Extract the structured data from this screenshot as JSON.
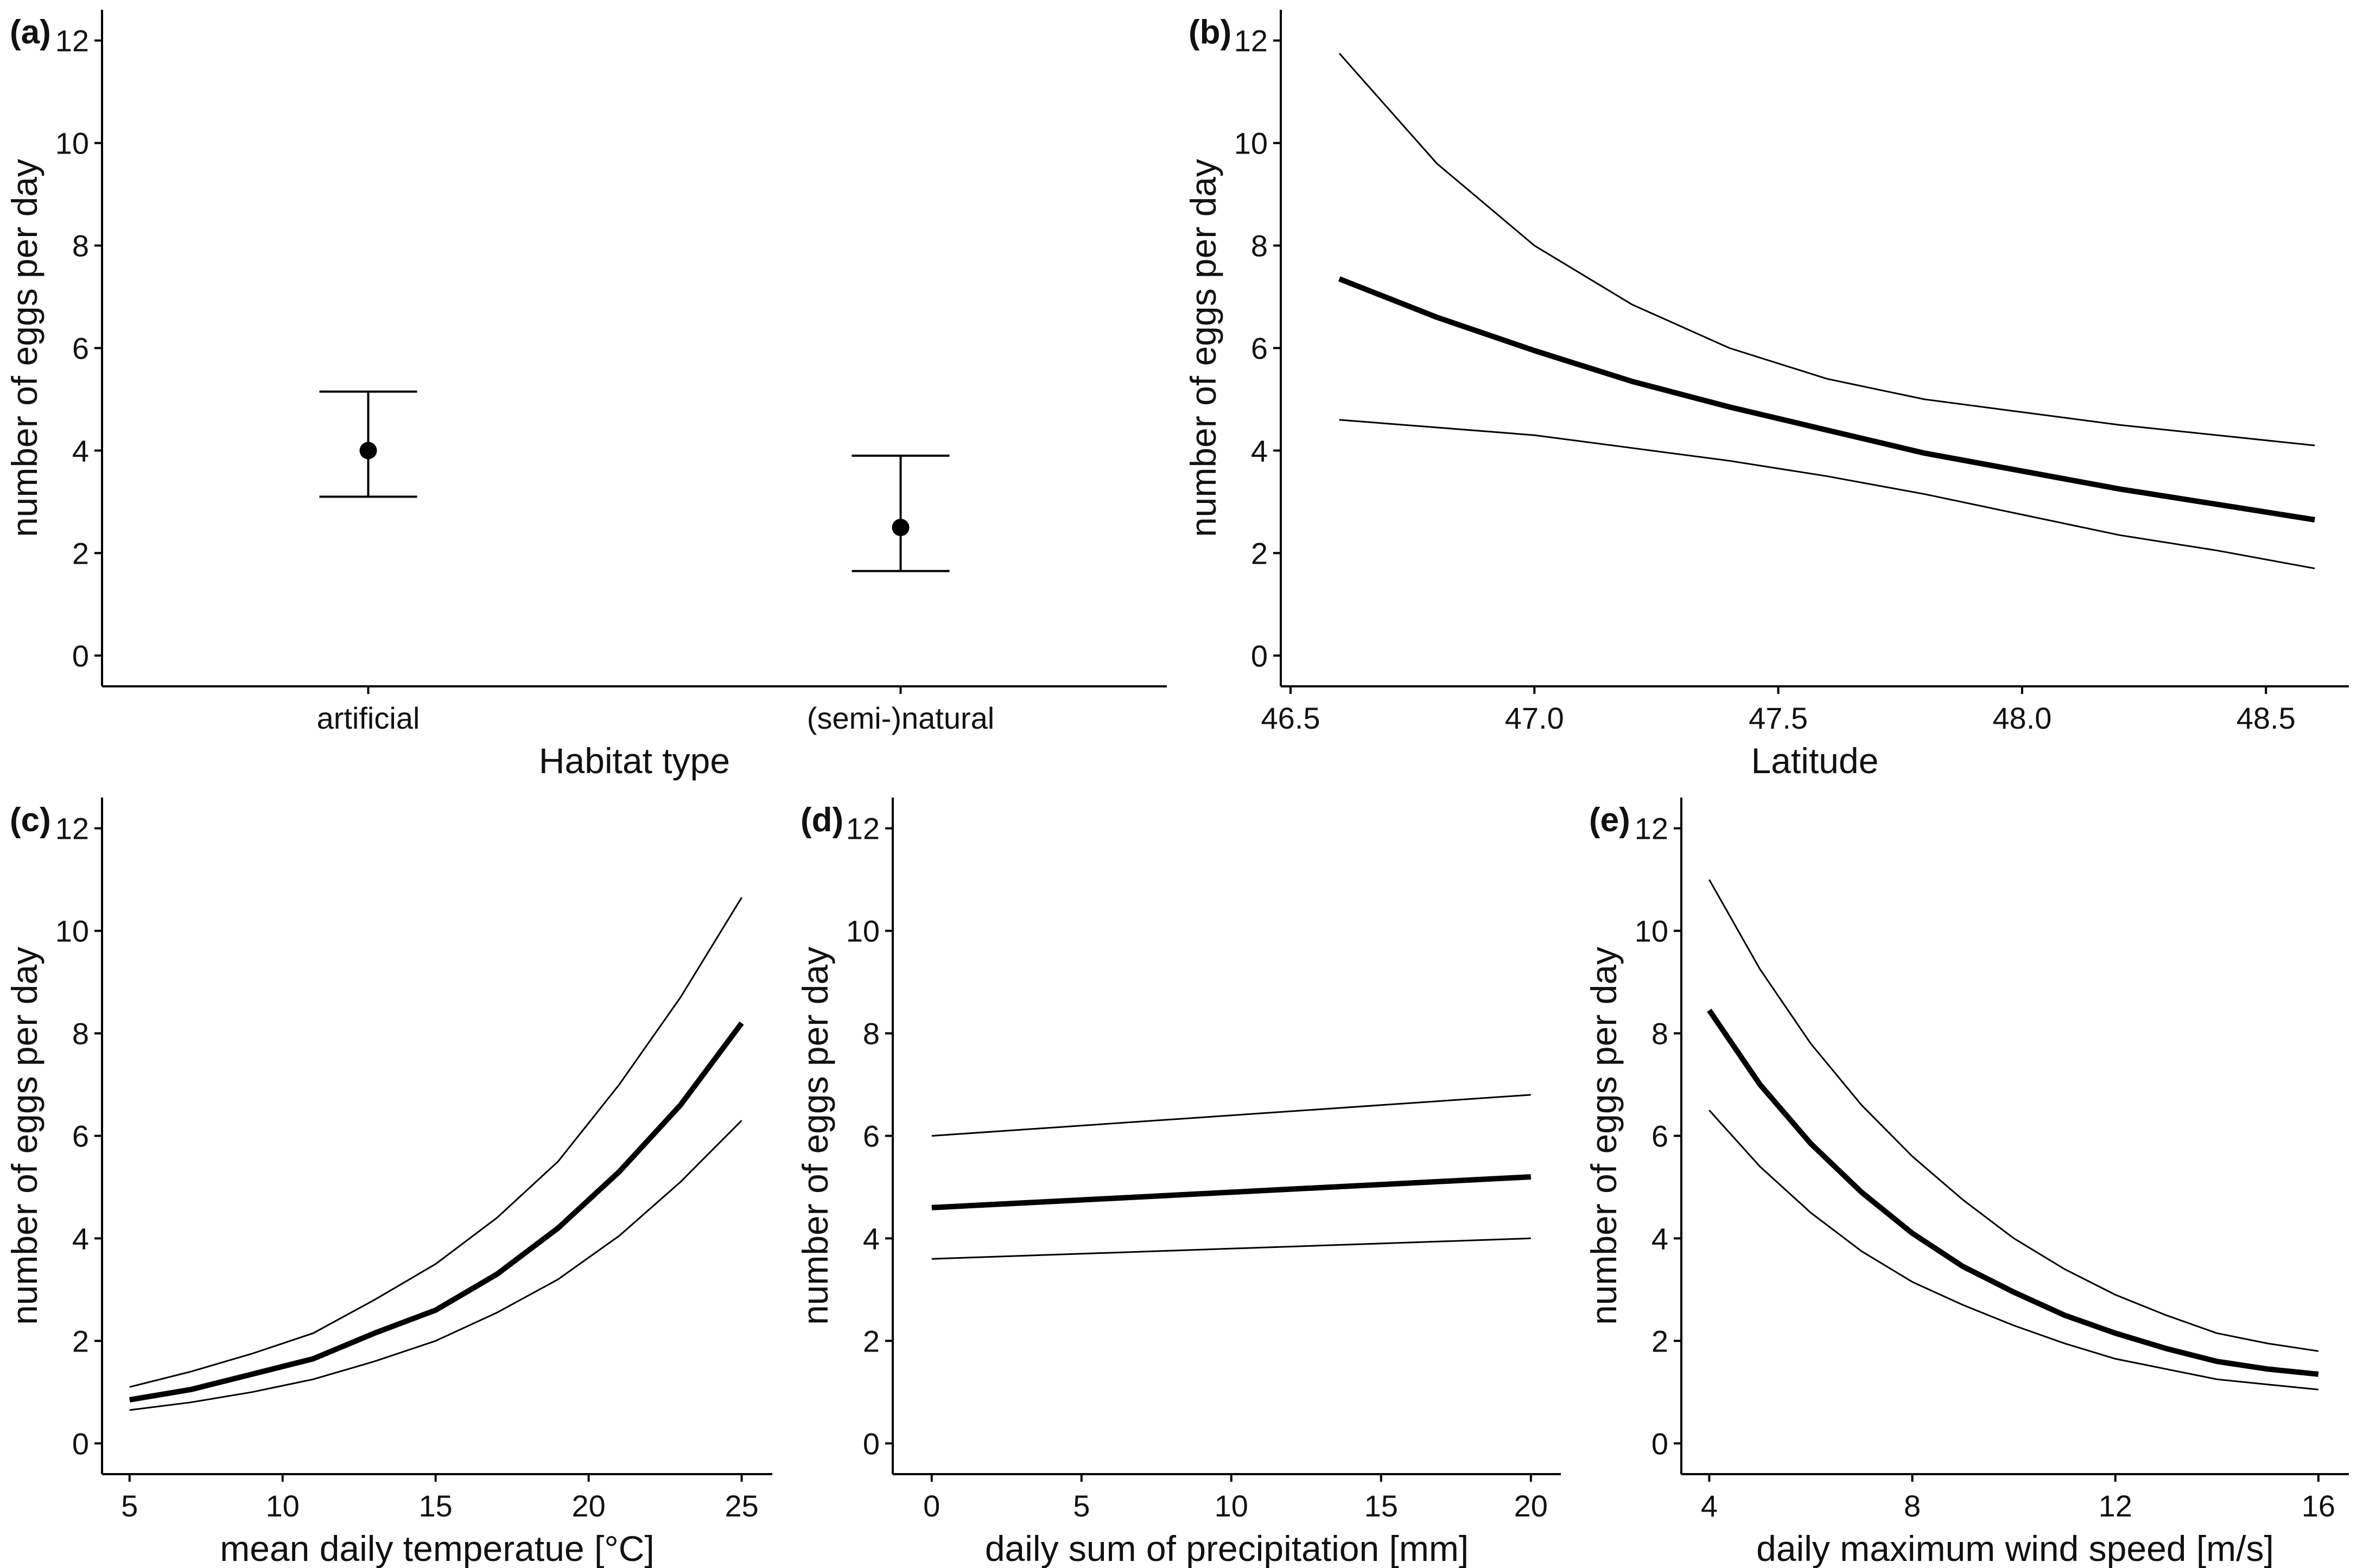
{
  "chart_data": [
    {
      "type": "errorbar",
      "panel_label": "(a)",
      "xlabel": "Habitat type",
      "ylabel": "number of eggs per day",
      "categories": [
        "artificial",
        "(semi-)natural"
      ],
      "values": [
        4.0,
        2.5
      ],
      "lower": [
        3.1,
        1.65
      ],
      "upper": [
        5.15,
        3.9
      ],
      "ylim": [
        -0.6,
        12.6
      ],
      "yticks": [
        0,
        2,
        4,
        6,
        8,
        10,
        12
      ],
      "ytick_labels": [
        "0",
        "2",
        "4",
        "6",
        "8",
        "10",
        "12"
      ],
      "grid": false
    },
    {
      "type": "line",
      "panel_label": "(b)",
      "xlabel": "Latitude",
      "ylabel": "number of eggs per day",
      "xlim": [
        46.48,
        48.67
      ],
      "ylim": [
        -0.6,
        12.6
      ],
      "xticks": [
        46.5,
        47.0,
        47.5,
        48.0,
        48.5
      ],
      "xtick_labels": [
        "46.5",
        "47.0",
        "47.5",
        "48.0",
        "48.5"
      ],
      "yticks": [
        0,
        2,
        4,
        6,
        8,
        10,
        12
      ],
      "ytick_labels": [
        "0",
        "2",
        "4",
        "6",
        "8",
        "10",
        "12"
      ],
      "x": [
        46.6,
        46.8,
        47.0,
        47.2,
        47.4,
        47.6,
        47.8,
        48.0,
        48.2,
        48.4,
        48.6
      ],
      "fit": [
        7.35,
        6.6,
        5.95,
        5.35,
        4.85,
        4.4,
        3.95,
        3.6,
        3.25,
        2.95,
        2.65
      ],
      "upper": [
        11.75,
        9.6,
        8.0,
        6.85,
        6.0,
        5.4,
        5.0,
        4.75,
        4.5,
        4.3,
        4.1
      ],
      "lower": [
        4.6,
        4.45,
        4.3,
        4.05,
        3.8,
        3.5,
        3.15,
        2.75,
        2.35,
        2.05,
        1.7
      ],
      "grid": false
    },
    {
      "type": "line",
      "panel_label": "(c)",
      "xlabel": "mean daily temperatue [°C]",
      "ylabel": "number of eggs per day",
      "xlim": [
        4.1,
        26.0
      ],
      "ylim": [
        -0.6,
        12.6
      ],
      "xticks": [
        5,
        10,
        15,
        20,
        25
      ],
      "xtick_labels": [
        "5",
        "10",
        "15",
        "20",
        "25"
      ],
      "yticks": [
        0,
        2,
        4,
        6,
        8,
        10,
        12
      ],
      "ytick_labels": [
        "0",
        "2",
        "4",
        "6",
        "8",
        "10",
        "12"
      ],
      "x": [
        5,
        7,
        9,
        11,
        13,
        15,
        17,
        19,
        21,
        23,
        25
      ],
      "fit": [
        0.85,
        1.05,
        1.35,
        1.65,
        2.15,
        2.6,
        3.3,
        4.2,
        5.3,
        6.6,
        8.2
      ],
      "upper": [
        1.1,
        1.4,
        1.75,
        2.15,
        2.8,
        3.5,
        4.4,
        5.5,
        7.0,
        8.7,
        10.65
      ],
      "lower": [
        0.65,
        0.8,
        1.0,
        1.25,
        1.6,
        2.0,
        2.55,
        3.2,
        4.05,
        5.1,
        6.3
      ],
      "grid": false
    },
    {
      "type": "line",
      "panel_label": "(d)",
      "xlabel": "daily sum of precipitation [mm]",
      "ylabel": "number of eggs per day",
      "xlim": [
        -1.3,
        21.0
      ],
      "ylim": [
        -0.6,
        12.6
      ],
      "xticks": [
        0,
        5,
        10,
        15,
        20
      ],
      "xtick_labels": [
        "0",
        "5",
        "10",
        "15",
        "20"
      ],
      "yticks": [
        0,
        2,
        4,
        6,
        8,
        10,
        12
      ],
      "ytick_labels": [
        "0",
        "2",
        "4",
        "6",
        "8",
        "10",
        "12"
      ],
      "x": [
        0,
        5,
        10,
        15,
        20
      ],
      "fit": [
        4.6,
        4.75,
        4.9,
        5.05,
        5.2
      ],
      "upper": [
        6.0,
        6.2,
        6.4,
        6.6,
        6.8
      ],
      "lower": [
        3.6,
        3.7,
        3.8,
        3.9,
        4.0
      ],
      "grid": false
    },
    {
      "type": "line",
      "panel_label": "(e)",
      "xlabel": "daily maximum wind speed [m/s]",
      "ylabel": "number of eggs per day",
      "xlim": [
        3.45,
        16.6
      ],
      "ylim": [
        -0.6,
        12.6
      ],
      "xticks": [
        4,
        8,
        12,
        16
      ],
      "xtick_labels": [
        "4",
        "8",
        "12",
        "16"
      ],
      "yticks": [
        0,
        2,
        4,
        6,
        8,
        10,
        12
      ],
      "ytick_labels": [
        "0",
        "2",
        "4",
        "6",
        "8",
        "10",
        "12"
      ],
      "x": [
        4,
        5,
        6,
        7,
        8,
        9,
        10,
        11,
        12,
        13,
        14,
        15,
        16
      ],
      "fit": [
        8.45,
        7.0,
        5.85,
        4.9,
        4.1,
        3.45,
        2.95,
        2.5,
        2.15,
        1.85,
        1.6,
        1.45,
        1.35
      ],
      "upper": [
        11.0,
        9.25,
        7.8,
        6.6,
        5.6,
        4.75,
        4.0,
        3.4,
        2.9,
        2.5,
        2.15,
        1.95,
        1.8
      ],
      "lower": [
        6.5,
        5.4,
        4.5,
        3.75,
        3.15,
        2.7,
        2.3,
        1.95,
        1.65,
        1.45,
        1.25,
        1.15,
        1.05
      ],
      "grid": false
    }
  ]
}
